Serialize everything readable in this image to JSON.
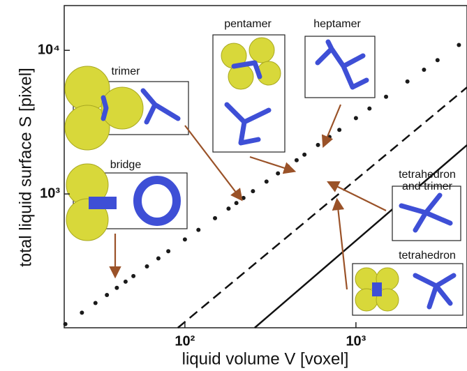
{
  "chart_data": {
    "type": "scatter",
    "x_label": "liquid volume V  [voxel]",
    "y_label": "total liquid surface S  [pixel]",
    "x_scale": "log",
    "y_scale": "log",
    "xlim": [
      19.7,
      4460
    ],
    "ylim": [
      117,
      20500
    ],
    "xticks": [
      {
        "value": 100,
        "label": "10²"
      },
      {
        "value": 1000,
        "label": "10³"
      }
    ],
    "yticks": [
      {
        "value": 1000,
        "label": "10³"
      },
      {
        "value": 10000,
        "label": "10⁴"
      }
    ],
    "color": "#1a1a1a",
    "x": [
      20,
      25,
      30,
      35,
      40,
      45,
      50,
      60,
      70,
      80,
      100,
      120,
      150,
      180,
      200,
      220,
      250,
      300,
      350,
      400,
      450,
      500,
      600,
      700,
      800,
      1000,
      1200,
      1500,
      2000,
      2500,
      3000,
      4000
    ],
    "y": [
      124,
      149,
      174,
      198,
      222,
      245,
      268,
      313,
      356,
      399,
      482,
      562,
      678,
      791,
      865,
      938,
      1045,
      1219,
      1390,
      1556,
      1718,
      1879,
      2193,
      2495,
      2793,
      3373,
      3936,
      4754,
      6067,
      7328,
      8551,
      10900
    ],
    "lines": [
      {
        "style": "dashed",
        "x": [
          91,
          4460
        ],
        "y": [
          117,
          5530
        ]
      },
      {
        "style": "solid",
        "x": [
          256,
          4460
        ],
        "y": [
          117,
          2190
        ]
      }
    ],
    "annotations": [
      {
        "lines": [
          "trimer"
        ]
      },
      {
        "lines": [
          "bridge"
        ]
      },
      {
        "lines": [
          "pentamer"
        ]
      },
      {
        "lines": [
          "heptamer"
        ]
      },
      {
        "lines": [
          "tetrahedron",
          "and trimer"
        ]
      },
      {
        "lines": [
          "tetrahedron"
        ]
      }
    ]
  }
}
